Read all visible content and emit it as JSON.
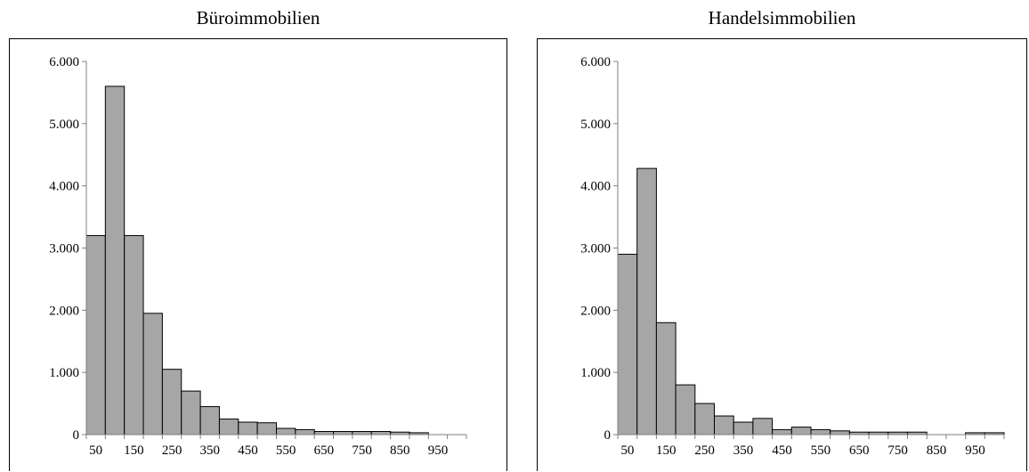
{
  "chart_data": [
    {
      "type": "bar",
      "title": "Büroimmobilien",
      "xlabel": "",
      "ylabel": "",
      "ylim": [
        0,
        6000
      ],
      "yticks": [
        "0",
        "1.000",
        "2.000",
        "3.000",
        "4.000",
        "5.000",
        "6.000"
      ],
      "xtick_labels": [
        "50",
        "150",
        "250",
        "350",
        "450",
        "550",
        "650",
        "750",
        "850",
        "950"
      ],
      "bin_width": 50,
      "x_start": 25,
      "x_end": 1025,
      "values": [
        3200,
        5600,
        3200,
        1950,
        1050,
        700,
        450,
        250,
        200,
        190,
        100,
        80,
        50,
        50,
        50,
        50,
        40,
        30,
        0,
        0
      ],
      "grid": false,
      "legend": false
    },
    {
      "type": "bar",
      "title": "Handelsimmobilien",
      "xlabel": "",
      "ylabel": "",
      "ylim": [
        0,
        6000
      ],
      "yticks": [
        "0",
        "1.000",
        "2.000",
        "3.000",
        "4.000",
        "5.000",
        "6.000"
      ],
      "xtick_labels": [
        "50",
        "150",
        "250",
        "350",
        "450",
        "550",
        "650",
        "750",
        "850",
        "950"
      ],
      "bin_width": 50,
      "x_start": 25,
      "x_end": 1025,
      "values": [
        2900,
        4280,
        1800,
        800,
        500,
        300,
        200,
        260,
        80,
        120,
        80,
        60,
        40,
        40,
        40,
        40,
        0,
        0,
        30,
        30
      ],
      "grid": false,
      "legend": false
    }
  ]
}
